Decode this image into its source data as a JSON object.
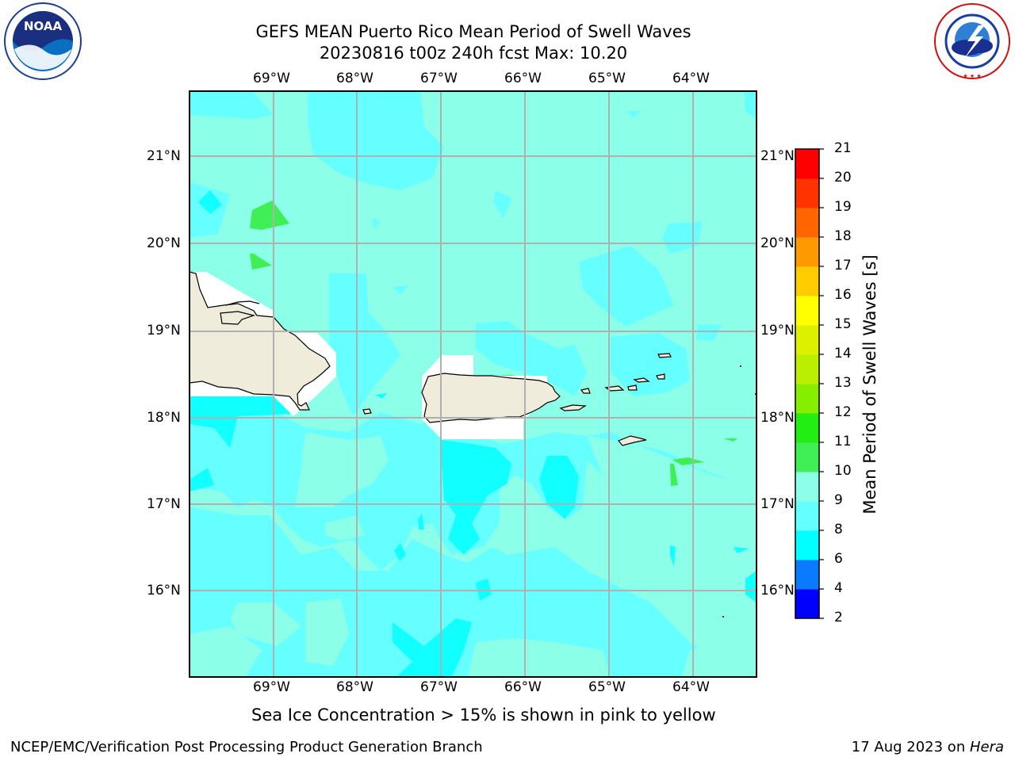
{
  "header": {
    "title_line1": "GEFS MEAN Puerto Rico Mean Period of Swell Waves",
    "title_line2": "20230816 t00z 240h fcst   Max: 10.20"
  },
  "logos": {
    "left": "noaa-logo",
    "right": "national-weather-service-logo",
    "noaa_text": "NOAA",
    "nws_text": "NATIONAL WEATHER SERVICE"
  },
  "map": {
    "lon_labels": [
      "69°W",
      "68°W",
      "67°W",
      "66°W",
      "65°W",
      "64°W"
    ],
    "lat_labels": [
      "21°N",
      "20°N",
      "19°N",
      "18°N",
      "17°N",
      "16°N"
    ],
    "colors": {
      "ocean_light": "#8cffe8",
      "ocean_mid": "#66ffff",
      "ocean_cyan": "#11ffff",
      "green": "#40ee55",
      "land": "#efecdc",
      "grid": "#b0b0b0"
    }
  },
  "colorbar": {
    "label": "Mean Period of Swell Waves [s]",
    "ticks": [
      "2",
      "4",
      "6",
      "8",
      "9",
      "10",
      "11",
      "12",
      "13",
      "14",
      "15",
      "16",
      "17",
      "18",
      "19",
      "20",
      "21"
    ],
    "colors": [
      "#0000ff",
      "#0a7bff",
      "#00ffff",
      "#66ffff",
      "#8cffe8",
      "#40ee55",
      "#22ee11",
      "#88ee00",
      "#bbee00",
      "#ddf000",
      "#ffff00",
      "#ffcc00",
      "#ff9900",
      "#ff6600",
      "#ff3300",
      "#ff0000"
    ]
  },
  "footer": {
    "note": "Sea Ice Concentration > 15% is shown in pink to yellow",
    "left": "NCEP/EMC/Verification Post Processing Product Generation Branch",
    "right_date": "17 Aug 2023 on ",
    "right_machine": "Hera"
  }
}
